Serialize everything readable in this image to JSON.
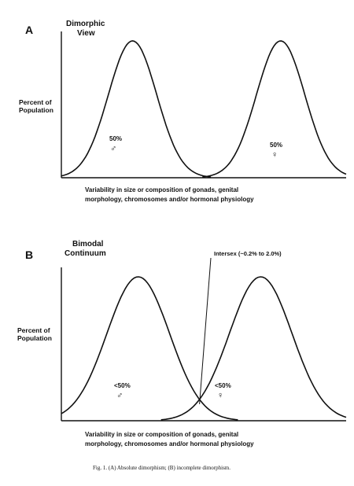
{
  "figure": {
    "caption": "Fig. 1.   (A) Absolute dimorphism; (B) incomplete dimorphism."
  },
  "panels": [
    {
      "letter": "A",
      "heading_lines": [
        "Dimorphic",
        "View"
      ],
      "ylabel_lines": [
        "Percent of",
        "Population"
      ],
      "xlabel_lines": [
        "Variability in size or composition of gonads, genital",
        "morphology, chromosomes and/or hormonal physiology"
      ],
      "male_label": "50%",
      "female_label": "50%"
    },
    {
      "letter": "B",
      "heading_lines": [
        "Bimodal",
        "Continuum"
      ],
      "ylabel_lines": [
        "Percent of",
        "Population"
      ],
      "xlabel_lines": [
        "Variability in size or composition of gonads, genital",
        "morphology, chromosomes and/or hormonal physiology"
      ],
      "male_label": "<50%",
      "female_label": "<50%",
      "annotation": "Intersex (~0.2% to 2.0%)"
    }
  ],
  "symbols": {
    "male": "♂",
    "female": "♀"
  },
  "chart_data": [
    {
      "type": "line",
      "series": [
        {
          "name": "male",
          "label": "50%",
          "peak_x": 0.25,
          "width_sd": 0.085,
          "peak": 1.0
        },
        {
          "name": "female",
          "label": "50%",
          "peak_x": 0.77,
          "width_sd": 0.085,
          "peak": 1.0
        }
      ],
      "xlim": [
        0,
        1
      ],
      "ylim": [
        0,
        1
      ],
      "overlap": false
    },
    {
      "type": "line",
      "series": [
        {
          "name": "male",
          "label": "<50%",
          "peak_x": 0.27,
          "width_sd": 0.11,
          "peak": 1.0
        },
        {
          "name": "female",
          "label": "<50%",
          "peak_x": 0.7,
          "width_sd": 0.11,
          "peak": 1.0
        }
      ],
      "xlim": [
        0,
        1
      ],
      "ylim": [
        0,
        1
      ],
      "overlap": true
    }
  ]
}
